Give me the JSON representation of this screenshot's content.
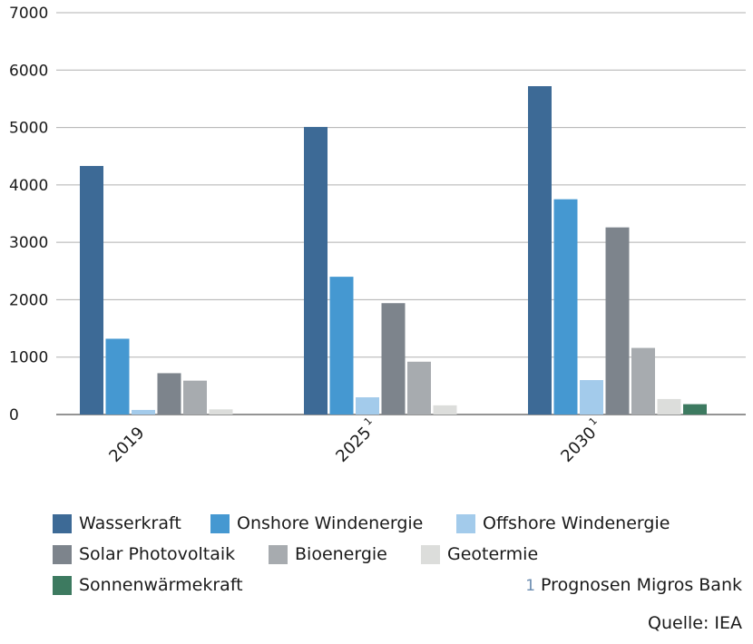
{
  "chart_data": {
    "type": "bar",
    "title": "",
    "xlabel": "",
    "ylabel": "",
    "ylim": [
      0,
      7000
    ],
    "yticks": [
      0,
      1000,
      2000,
      3000,
      4000,
      5000,
      6000,
      7000
    ],
    "grid": true,
    "categories": [
      "2019",
      "2025",
      "2030"
    ],
    "category_superscripts": [
      "",
      "1",
      "1"
    ],
    "series": [
      {
        "name": "Wasserkraft",
        "color": "#3d6a96",
        "values": [
          4330,
          5010,
          5720
        ]
      },
      {
        "name": "Onshore Windenergie",
        "color": "#4598d1",
        "values": [
          1320,
          2400,
          3750
        ]
      },
      {
        "name": "Offshore Windenergie",
        "color": "#a3cbeb",
        "values": [
          80,
          300,
          600
        ]
      },
      {
        "name": "Solar Photovoltaik",
        "color": "#7d848c",
        "values": [
          720,
          1940,
          3260
        ]
      },
      {
        "name": "Bioenergie",
        "color": "#a7abaf",
        "values": [
          590,
          920,
          1160
        ]
      },
      {
        "name": "Geotermie",
        "color": "#dcdddb",
        "values": [
          90,
          160,
          270
        ]
      },
      {
        "name": "Sonnenwärmekraft",
        "color": "#3d7a60",
        "values": [
          0,
          0,
          180
        ]
      }
    ],
    "legend_placement": "bottom"
  },
  "notes": {
    "footnote_number": "1",
    "footnote_text": "Prognosen Migros Bank",
    "source": "Quelle: IEA"
  }
}
